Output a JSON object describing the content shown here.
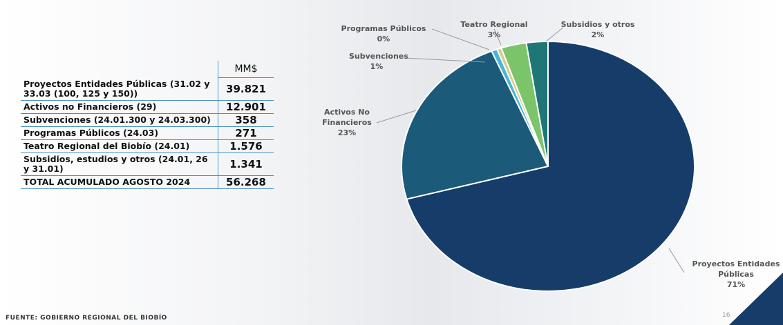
{
  "table": {
    "column_header": "MM$",
    "rows": [
      [
        "Proyectos Entidades Públicas (31.02 y 33.03 (100, 125 y 150))",
        "39.821"
      ],
      [
        "Activos no Financieros (29)",
        "12.901"
      ],
      [
        "Subvenciones (24.01.300 y 24.03.300)",
        "358"
      ],
      [
        "Programas Públicos (24.03)",
        "271"
      ],
      [
        "Teatro Regional del Biobío (24.01)",
        "1.576"
      ],
      [
        "Subsidios, estudios y otros (24.01, 26 y 31.01)",
        "1.341"
      ],
      [
        "TOTAL ACUMULADO AGOSTO 2024",
        "56.268"
      ]
    ]
  },
  "chart_data": {
    "type": "pie",
    "categories": [
      "Proyectos Entidades Públicas",
      "Activos No Financieros",
      "Subvenciones",
      "Programas Públicos",
      "Teatro Regional",
      "Subsidios y otros"
    ],
    "values": [
      70.77,
      22.93,
      0.64,
      0.48,
      2.8,
      2.38
    ],
    "value_labels": [
      "71%",
      "23%",
      "1%",
      "0%",
      "3%",
      "2%"
    ],
    "colors": [
      "#163d6a",
      "#1b5a78",
      "#45b6d8",
      "#d8c98c",
      "#7cc46a",
      "#1f7676"
    ]
  },
  "source": "FUENTE: GOBIERNO REGIONAL DEL BIOBÍO",
  "page_number": "16"
}
